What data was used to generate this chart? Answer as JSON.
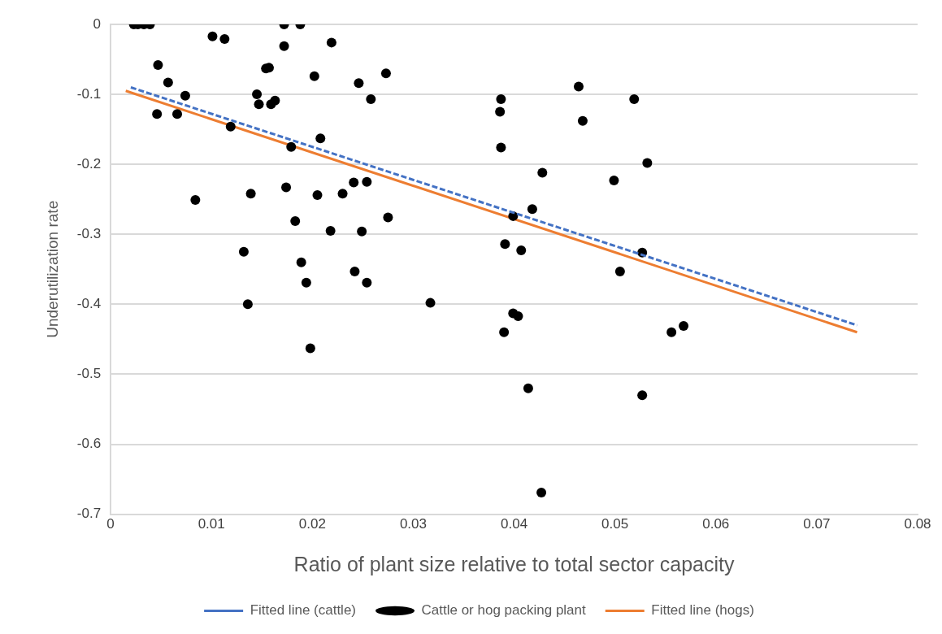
{
  "chart_data": {
    "type": "scatter",
    "xlabel": "Ratio of plant size relative to total sector capacity",
    "ylabel": "Underutilization rate",
    "xlim": [
      0,
      0.08
    ],
    "xticks": [
      0,
      0.01,
      0.02,
      0.03,
      0.04,
      0.05,
      0.06,
      0.07,
      0.08
    ],
    "ylim": [
      -0.7,
      0
    ],
    "yticks": [
      -0.7,
      -0.6,
      -0.5,
      -0.4,
      -0.3,
      -0.2,
      -0.1,
      0
    ],
    "grid": "y",
    "legend": "bottom",
    "series": [
      {
        "name": "Fitted line (cattle)",
        "type": "line",
        "color": "#4472c4",
        "line_style": "dashed",
        "marker": "none",
        "x": [
          0.002,
          0.074
        ],
        "values": [
          -0.09,
          -0.43
        ]
      },
      {
        "name": "Cattle or hog packing plant",
        "type": "scatter",
        "color": "#000000",
        "marker": "circle",
        "x": [
          0.0023,
          0.0027,
          0.0033,
          0.0039,
          0.0101,
          0.0113,
          0.0047,
          0.0057,
          0.0074,
          0.0046,
          0.0066,
          0.0119,
          0.0084,
          0.0172,
          0.0188,
          0.0172,
          0.0219,
          0.0154,
          0.0157,
          0.0202,
          0.0246,
          0.0273,
          0.0258,
          0.0145,
          0.0147,
          0.0159,
          0.0163,
          0.0179,
          0.0208,
          0.0174,
          0.0139,
          0.0205,
          0.023,
          0.0241,
          0.0254,
          0.0183,
          0.0218,
          0.0249,
          0.0275,
          0.0132,
          0.0189,
          0.0194,
          0.0242,
          0.0254,
          0.0136,
          0.0317,
          0.0198,
          0.0387,
          0.0386,
          0.0387,
          0.0464,
          0.0468,
          0.0519,
          0.0532,
          0.0499,
          0.0428,
          0.0418,
          0.0399,
          0.0391,
          0.0407,
          0.0527,
          0.0505,
          0.0399,
          0.0404,
          0.039,
          0.0556,
          0.0568,
          0.0414,
          0.0527,
          0.0427
        ],
        "values": [
          0,
          0,
          0,
          0,
          -0.017,
          -0.021,
          -0.058,
          -0.083,
          -0.102,
          -0.128,
          -0.128,
          -0.146,
          -0.251,
          0,
          0,
          -0.031,
          -0.026,
          -0.063,
          -0.062,
          -0.074,
          -0.084,
          -0.07,
          -0.107,
          -0.1,
          -0.114,
          -0.114,
          -0.109,
          -0.175,
          -0.163,
          -0.233,
          -0.242,
          -0.244,
          -0.242,
          -0.226,
          -0.225,
          -0.281,
          -0.295,
          -0.296,
          -0.276,
          -0.325,
          -0.34,
          -0.369,
          -0.353,
          -0.369,
          -0.4,
          -0.398,
          -0.463,
          -0.107,
          -0.125,
          -0.176,
          -0.089,
          -0.138,
          -0.107,
          -0.198,
          -0.223,
          -0.212,
          -0.264,
          -0.274,
          -0.314,
          -0.323,
          -0.326,
          -0.353,
          -0.413,
          -0.417,
          -0.44,
          -0.44,
          -0.431,
          -0.52,
          -0.53,
          -0.669
        ]
      },
      {
        "name": "Fitted line (hogs)",
        "type": "line",
        "color": "#ed7d31",
        "line_style": "solid",
        "marker": "none",
        "x": [
          0.0015,
          0.074
        ],
        "values": [
          -0.095,
          -0.44
        ]
      }
    ]
  }
}
